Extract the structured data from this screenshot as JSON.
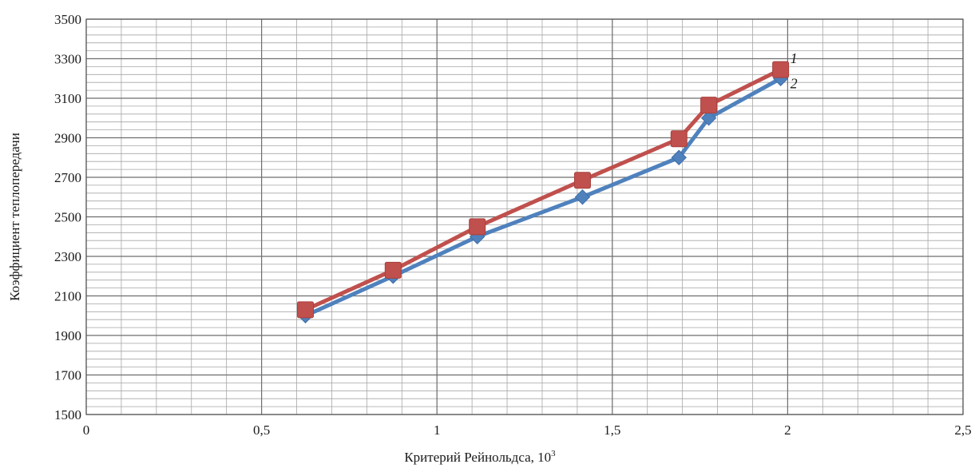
{
  "chart_data": {
    "type": "line",
    "title": "",
    "xlabel": "Критерий Рейнольдса, 10",
    "xlabel_superscript": "3",
    "ylabel": "Коэффициент теплопередачи",
    "xlim": [
      0,
      2.5
    ],
    "ylim": [
      1500,
      3500
    ],
    "x_ticks": [
      0,
      0.5,
      1,
      1.5,
      2,
      2.5
    ],
    "x_tick_labels": [
      "0",
      "0,5",
      "1",
      "1,5",
      "2",
      "2,5"
    ],
    "y_ticks": [
      1500,
      1700,
      1900,
      2100,
      2300,
      2500,
      2700,
      2900,
      3100,
      3300,
      3500
    ],
    "y_tick_labels": [
      "1500",
      "1700",
      "1900",
      "2100",
      "2300",
      "2500",
      "2700",
      "2900",
      "3100",
      "3300",
      "3500"
    ],
    "grid": true,
    "legend": "none",
    "series": [
      {
        "name": "1",
        "color": "#C0504D",
        "marker": "square",
        "x": [
          0.625,
          0.875,
          1.115,
          1.415,
          1.69,
          1.775,
          1.98
        ],
        "y": [
          2030,
          2230,
          2450,
          2685,
          2895,
          3065,
          3245
        ]
      },
      {
        "name": "2",
        "color": "#4F81BD",
        "marker": "diamond",
        "x": [
          0.625,
          0.875,
          1.115,
          1.415,
          1.69,
          1.775,
          1.98
        ],
        "y": [
          2000,
          2200,
          2400,
          2600,
          2800,
          3000,
          3200
        ]
      }
    ]
  }
}
